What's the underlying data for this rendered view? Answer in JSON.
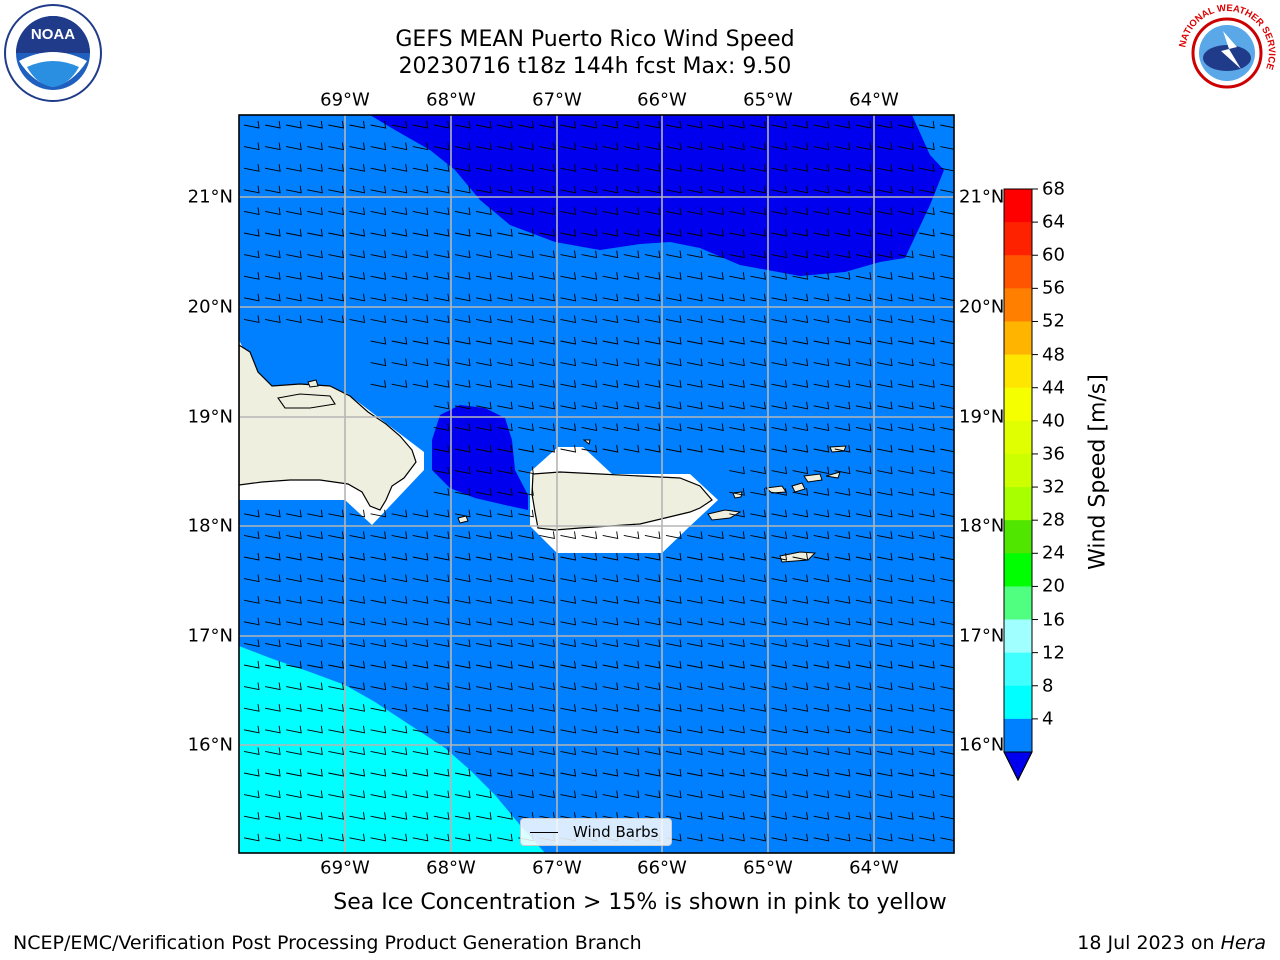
{
  "title": {
    "line1": "GEFS MEAN Puerto Rico Wind Speed",
    "line2": "20230716 t18z 144h fcst   Max: 9.50"
  },
  "subtitle": "Sea Ice Concentration > 15% is shown in pink to yellow",
  "footer": {
    "left": "NCEP/EMC/Verification Post Processing Product Generation Branch",
    "right_prefix": "18 Jul 2023 on ",
    "right_host": "Hera"
  },
  "logos": {
    "left": "NOAA",
    "right": "NATIONAL WEATHER SERVICE"
  },
  "map": {
    "lon_labels": [
      "69°W",
      "68°W",
      "67°W",
      "66°W",
      "65°W",
      "64°W"
    ],
    "lat_labels": [
      "21°N",
      "20°N",
      "19°N",
      "18°N",
      "17°N",
      "16°N"
    ],
    "legend_label": "Wind Barbs",
    "colors": {
      "land": "#efefdf",
      "ocean_4_8": "#0080ff",
      "ocean_below_4": "#0000ee",
      "ocean_8_12": "#00ffff"
    }
  },
  "colorbar": {
    "title": "Wind Speed [m/s]",
    "ticks": [
      "68",
      "64",
      "60",
      "56",
      "52",
      "48",
      "44",
      "40",
      "36",
      "32",
      "28",
      "24",
      "20",
      "16",
      "12",
      "8",
      "4"
    ],
    "colors": [
      "#ff0000",
      "#ff2200",
      "#ff5500",
      "#ff8000",
      "#ffb400",
      "#ffe600",
      "#f5ff00",
      "#e0ff00",
      "#ccff00",
      "#a8ff00",
      "#50e600",
      "#00ff00",
      "#50ff80",
      "#a0ffff",
      "#40ffff",
      "#00ffff",
      "#0080ff"
    ],
    "extend_color": "#0000ee"
  }
}
